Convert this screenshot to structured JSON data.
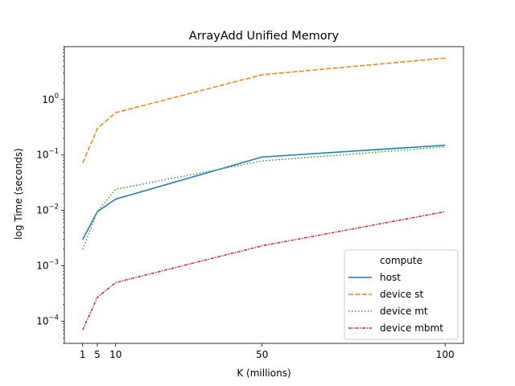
{
  "chart_data": {
    "type": "line",
    "title": "ArrayAdd Unified Memory",
    "xlabel": "K (millions)",
    "ylabel": "log Time (seconds)",
    "x": [
      1,
      5,
      10,
      50,
      100
    ],
    "xticks": [
      1,
      5,
      10,
      50,
      100
    ],
    "xlim": [
      -4,
      105
    ],
    "yscale": "log",
    "ylim": [
      4e-05,
      9
    ],
    "yticks": [
      {
        "value": 0.0001,
        "base": "10",
        "exp": "−4"
      },
      {
        "value": 0.001,
        "base": "10",
        "exp": "−3"
      },
      {
        "value": 0.01,
        "base": "10",
        "exp": "−2"
      },
      {
        "value": 0.1,
        "base": "10",
        "exp": "−1"
      },
      {
        "value": 1,
        "base": "10",
        "exp": "0"
      }
    ],
    "grid": false,
    "legend": {
      "title": "compute",
      "placement": "bottom-right"
    },
    "series": [
      {
        "name": "host",
        "color": "#1f77b4",
        "dash": "solid",
        "values": [
          0.003,
          0.0095,
          0.016,
          0.092,
          0.15
        ]
      },
      {
        "name": "device st",
        "color": "#ff7f0e",
        "dash": "dashed",
        "values": [
          0.072,
          0.3,
          0.58,
          2.8,
          5.6
        ]
      },
      {
        "name": "device mt",
        "color": "#2ca02c",
        "dash": "dotted",
        "values": [
          0.002,
          0.0095,
          0.024,
          0.078,
          0.14
        ]
      },
      {
        "name": "device mbmt",
        "color": "#d62728",
        "dash": "dashdot",
        "values": [
          7e-05,
          0.00027,
          0.0005,
          0.0023,
          0.0095
        ]
      }
    ]
  }
}
